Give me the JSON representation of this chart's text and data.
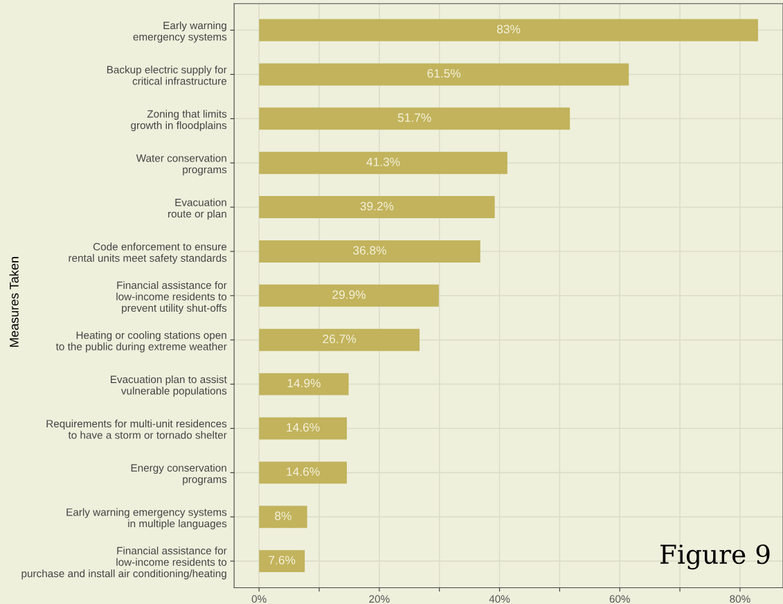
{
  "chart_data": {
    "type": "bar",
    "orientation": "horizontal",
    "ylabel": "Measures Taken",
    "categories": [
      "Early warning\nemergency systems",
      "Backup electric supply for\ncritical infrastructure",
      "Zoning that limits\ngrowth in floodplains",
      "Water conservation\nprograms",
      "Evacuation\nroute or plan",
      "Code enforcement to ensure\nrental units meet safety standards",
      "Financial assistance for\nlow-income residents to\nprevent utility shut-offs",
      "Heating or cooling stations open\nto the public during extreme weather",
      "Evacuation plan to assist\nvulnerable populations",
      "Requirements for multi-unit residences\nto have a storm or tornado shelter",
      "Energy conservation\nprograms",
      "Early warning emergency systems\nin multiple languages",
      "Financial assistance for\nlow-income residents to\npurchase and install air conditioning/heating"
    ],
    "values": [
      83,
      61.5,
      51.7,
      41.3,
      39.2,
      36.8,
      29.9,
      26.7,
      14.9,
      14.6,
      14.6,
      8,
      7.6
    ],
    "value_labels": [
      "83%",
      "61.5%",
      "51.7%",
      "41.3%",
      "39.2%",
      "36.8%",
      "29.9%",
      "26.7%",
      "14.9%",
      "14.6%",
      "14.6%",
      "8%",
      "7.6%"
    ],
    "color": "#c2b35c",
    "xlim": [
      -4.15,
      87.15
    ],
    "xticks": [
      {
        "value": 0,
        "label": "0%"
      },
      {
        "value": 10,
        "label": null
      },
      {
        "value": 20,
        "label": "20%"
      },
      {
        "value": 30,
        "label": null
      },
      {
        "value": 40,
        "label": "40%"
      },
      {
        "value": 50,
        "label": null
      },
      {
        "value": 60,
        "label": "60%"
      },
      {
        "value": 70,
        "label": null
      },
      {
        "value": 80,
        "label": "80%"
      }
    ],
    "grid": true,
    "annotations": [
      "Figure 9"
    ]
  }
}
